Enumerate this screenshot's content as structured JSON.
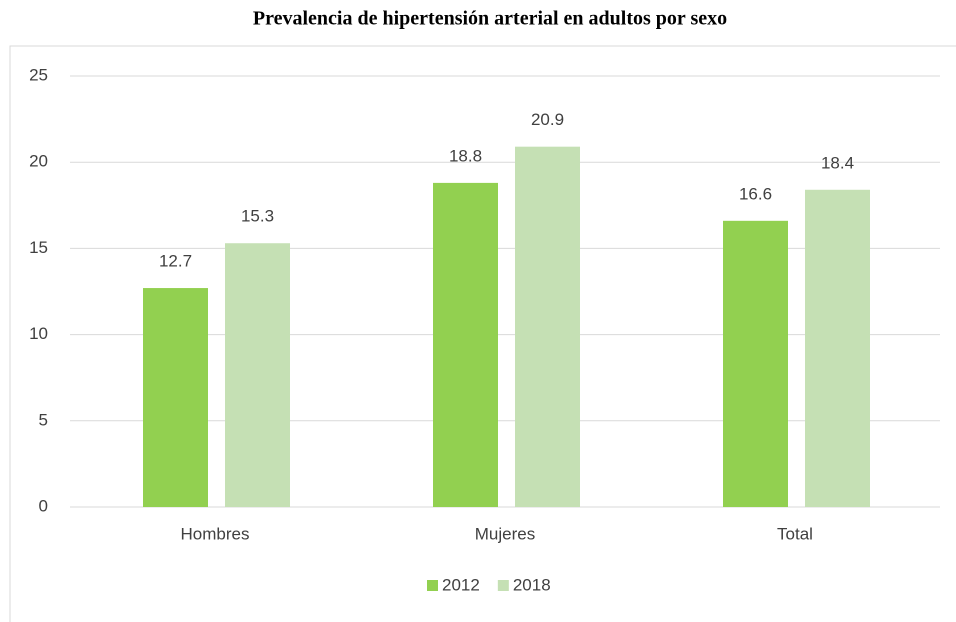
{
  "chart_data": {
    "type": "bar",
    "title": "Prevalencia de hipertensión arterial en adultos por sexo",
    "categories": [
      "Hombres",
      "Mujeres",
      "Total"
    ],
    "series": [
      {
        "name": "2012",
        "color": "#92d050",
        "values": [
          12.7,
          18.8,
          16.6
        ]
      },
      {
        "name": "2018",
        "color": "#c5e0b4",
        "values": [
          15.3,
          20.9,
          18.4
        ]
      }
    ],
    "ylim": [
      0,
      25
    ],
    "yticks": [
      0,
      5,
      10,
      15,
      20,
      25
    ],
    "grid": true,
    "legend": "bottom"
  }
}
